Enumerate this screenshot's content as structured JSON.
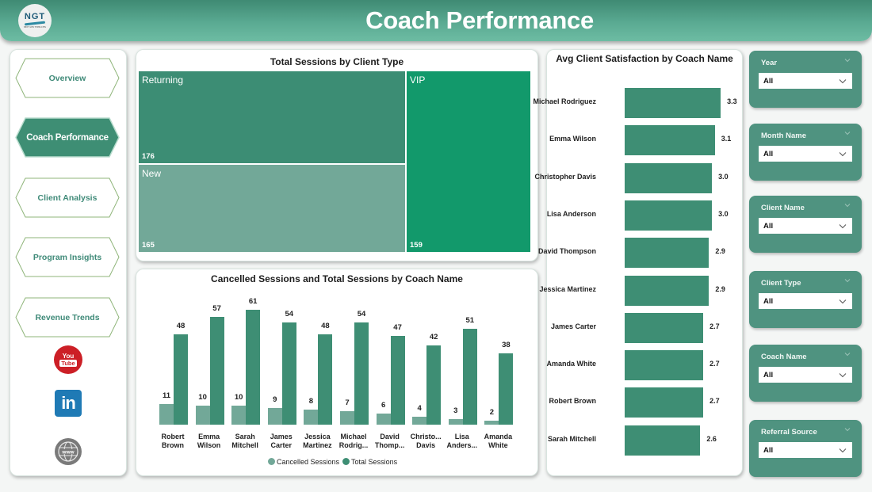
{
  "header": {
    "title": "Coach Performance",
    "logo_text": "NGT",
    "logo_subtext": "NEXT GEN TEMPLATES"
  },
  "nav": {
    "items": [
      {
        "label": "Overview",
        "active": false
      },
      {
        "label": "Coach Performance",
        "active": true
      },
      {
        "label": "Client Analysis",
        "active": false
      },
      {
        "label": "Program Insights",
        "active": false
      },
      {
        "label": "Revenue Trends",
        "active": false
      }
    ],
    "social": {
      "youtube_top": "You",
      "youtube_bottom": "Tube",
      "linkedin": "in",
      "website": "www"
    }
  },
  "colors": {
    "accent": "#3e8e74",
    "accent_light": "#72a898",
    "vip": "#12996b",
    "returning": "#3c8d74",
    "new": "#72a898",
    "cancelled": "#72a898",
    "total": "#3e8e74",
    "slicer_bg": "#4f9380"
  },
  "treemap": {
    "title": "Total Sessions by Client Type",
    "tiles": [
      {
        "label": "Returning",
        "value": "176"
      },
      {
        "label": "New",
        "value": "165"
      },
      {
        "label": "VIP",
        "value": "159"
      }
    ]
  },
  "columns": {
    "title": "Cancelled Sessions and Total Sessions by Coach Name",
    "legend": [
      "Cancelled Sessions",
      "Total Sessions"
    ],
    "coaches": [
      {
        "line1": "Robert",
        "line2": "Brown",
        "cancelled": 11,
        "total": 48
      },
      {
        "line1": "Emma",
        "line2": "Wilson",
        "cancelled": 10,
        "total": 57
      },
      {
        "line1": "Sarah",
        "line2": "Mitchell",
        "cancelled": 10,
        "total": 61
      },
      {
        "line1": "James",
        "line2": "Carter",
        "cancelled": 9,
        "total": 54
      },
      {
        "line1": "Jessica",
        "line2": "Martinez",
        "cancelled": 8,
        "total": 48
      },
      {
        "line1": "Michael",
        "line2": "Rodrig...",
        "cancelled": 7,
        "total": 54
      },
      {
        "line1": "David",
        "line2": "Thomp...",
        "cancelled": 6,
        "total": 47
      },
      {
        "line1": "Christo...",
        "line2": "Davis",
        "cancelled": 4,
        "total": 42
      },
      {
        "line1": "Lisa",
        "line2": "Anders...",
        "cancelled": 3,
        "total": 51
      },
      {
        "line1": "Amanda",
        "line2": "White",
        "cancelled": 2,
        "total": 38
      }
    ]
  },
  "hbars": {
    "title": "Avg Client Satisfaction by Coach Name",
    "rows": [
      {
        "name": "Michael Rodriguez",
        "value": "3.3"
      },
      {
        "name": "Emma Wilson",
        "value": "3.1"
      },
      {
        "name": "Christopher Davis",
        "value": "3.0"
      },
      {
        "name": "Lisa Anderson",
        "value": "3.0"
      },
      {
        "name": "David Thompson",
        "value": "2.9"
      },
      {
        "name": "Jessica Martinez",
        "value": "2.9"
      },
      {
        "name": "James Carter",
        "value": "2.7"
      },
      {
        "name": "Amanda White",
        "value": "2.7"
      },
      {
        "name": "Robert Brown",
        "value": "2.7"
      },
      {
        "name": "Sarah Mitchell",
        "value": "2.6"
      }
    ]
  },
  "slicers": [
    {
      "title": "Year",
      "value": "All"
    },
    {
      "title": "Month Name",
      "value": "All"
    },
    {
      "title": "Client Name",
      "value": "All"
    },
    {
      "title": "Client Type",
      "value": "All"
    },
    {
      "title": "Coach Name",
      "value": "All"
    },
    {
      "title": "Referral Source",
      "value": "All"
    }
  ],
  "chart_data": [
    {
      "type": "treemap",
      "title": "Total Sessions by Client Type",
      "categories": [
        "Returning",
        "New",
        "VIP"
      ],
      "values": [
        176,
        165,
        159
      ]
    },
    {
      "type": "bar",
      "title": "Cancelled Sessions and Total Sessions by Coach Name",
      "categories": [
        "Robert Brown",
        "Emma Wilson",
        "Sarah Mitchell",
        "James Carter",
        "Jessica Martinez",
        "Michael Rodriguez",
        "David Thompson",
        "Christopher Davis",
        "Lisa Anderson",
        "Amanda White"
      ],
      "series": [
        {
          "name": "Cancelled Sessions",
          "values": [
            11,
            10,
            10,
            9,
            8,
            7,
            6,
            4,
            3,
            2
          ]
        },
        {
          "name": "Total Sessions",
          "values": [
            48,
            57,
            61,
            54,
            48,
            54,
            47,
            42,
            51,
            38
          ]
        }
      ],
      "xlabel": "",
      "ylabel": "",
      "legend_position": "bottom",
      "grid": false
    },
    {
      "type": "bar",
      "orientation": "horizontal",
      "title": "Avg Client Satisfaction by Coach Name",
      "categories": [
        "Michael Rodriguez",
        "Emma Wilson",
        "Christopher Davis",
        "Lisa Anderson",
        "David Thompson",
        "Jessica Martinez",
        "James Carter",
        "Amanda White",
        "Robert Brown",
        "Sarah Mitchell"
      ],
      "values": [
        3.3,
        3.1,
        3.0,
        3.0,
        2.9,
        2.9,
        2.7,
        2.7,
        2.7,
        2.6
      ],
      "grid": false
    }
  ]
}
